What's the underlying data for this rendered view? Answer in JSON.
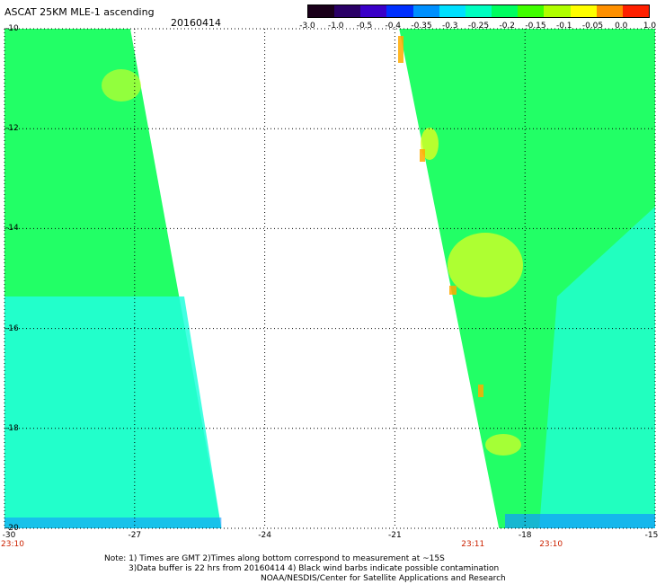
{
  "title": "ASCAT 25KM MLE-1 ascending",
  "date": "20160414",
  "colorbar": {
    "labels": [
      "-3.0",
      "-1.0",
      "-0.5",
      "-0.4",
      "-0.35",
      "-0.3",
      "-0.25",
      "-0.2",
      "-0.15",
      "-0.1",
      "-0.05",
      "0.0",
      "1.0"
    ],
    "colors": [
      "#1a001a",
      "#2a0066",
      "#3a00c8",
      "#0030ff",
      "#0090ff",
      "#00e0ff",
      "#00ffc0",
      "#00ff60",
      "#40ff00",
      "#b0ff00",
      "#ffff00",
      "#ff9000",
      "#ff2000"
    ]
  },
  "map": {
    "lat_range": [
      -20,
      -10
    ],
    "lon_range": [
      -30,
      -15
    ],
    "lat_ticks": [
      "-10",
      "-12",
      "-14",
      "-16",
      "-18",
      "-20"
    ],
    "lon_ticks": [
      "-30",
      "-27",
      "-24",
      "-21",
      "-18",
      "-15"
    ],
    "times": [
      {
        "label": "23:10",
        "lon": -30
      },
      {
        "label": "23:11",
        "lon": -19.2
      },
      {
        "label": "23:10",
        "lon": -17.4
      }
    ],
    "swath_west": {
      "lon_west": -30,
      "edge_lon_north": -27.1,
      "edge_lon_south": -25.0
    },
    "swath_east": {
      "lon_east": -15,
      "edge_lon_north": -20.9,
      "edge_lon_south": -18.6
    },
    "fill_colors": {
      "main": "#22ff66",
      "cyan": "#22ffdd",
      "blue": "#1199ff",
      "yellow": "#ddff22",
      "orange": "#ffaa00"
    }
  },
  "notes": [
    "Note: 1) Times are GMT 2)Times along bottom correspond to measurement at ~15S",
    "3)Data buffer is 22 hrs from 20160414 4) Black wind barbs indicate possible contamination",
    "NOAA/NESDIS/Center for Satellite Applications and Research"
  ]
}
